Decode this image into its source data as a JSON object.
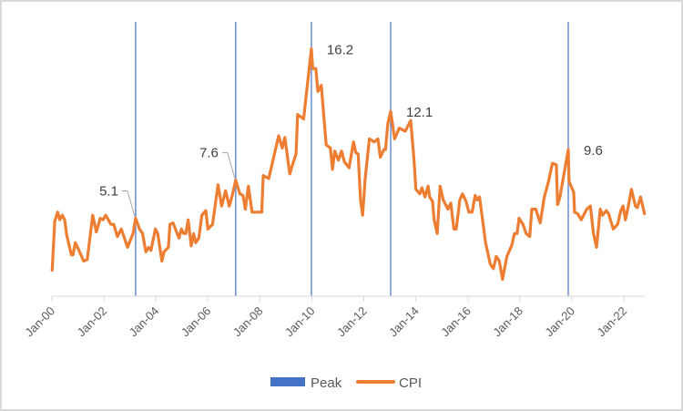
{
  "chart_data": {
    "type": "line",
    "title": "",
    "xlabel": "",
    "ylabel": "",
    "x_unit": "years since Jan-2000",
    "xlim": [
      0,
      22.8
    ],
    "ylim": [
      0,
      18
    ],
    "grid": false,
    "legend_position": "bottom",
    "x_tick_labels": [
      "Jan-00",
      "Jan-02",
      "Jan-04",
      "Jan-06",
      "Jan-08",
      "Jan-10",
      "Jan-12",
      "Jan-14",
      "Jan-16",
      "Jan-18",
      "Jan-20",
      "Jan-22"
    ],
    "x_tick_values": [
      0,
      2,
      4,
      6,
      8,
      10,
      12,
      14,
      16,
      18,
      20,
      22
    ],
    "colors": {
      "peak": "#4472c4",
      "cpi": "#ed7d31"
    },
    "legend": [
      {
        "name": "Peak",
        "marker": "rect"
      },
      {
        "name": "CPI",
        "marker": "line"
      }
    ],
    "series": [
      {
        "name": "CPI",
        "points": [
          [
            0.01,
            1.7
          ],
          [
            0.11,
            4.9
          ],
          [
            0.22,
            5.5
          ],
          [
            0.3,
            5.0
          ],
          [
            0.4,
            5.3
          ],
          [
            0.49,
            5.0
          ],
          [
            0.57,
            4.0
          ],
          [
            0.75,
            2.7
          ],
          [
            0.81,
            2.7
          ],
          [
            0.9,
            3.5
          ],
          [
            1.04,
            3.0
          ],
          [
            1.22,
            2.3
          ],
          [
            1.36,
            2.4
          ],
          [
            1.57,
            5.3
          ],
          [
            1.71,
            4.2
          ],
          [
            1.86,
            5.1
          ],
          [
            1.97,
            5.0
          ],
          [
            2.07,
            5.3
          ],
          [
            2.17,
            5.0
          ],
          [
            2.27,
            4.7
          ],
          [
            2.38,
            4.7
          ],
          [
            2.52,
            3.9
          ],
          [
            2.67,
            4.4
          ],
          [
            2.91,
            3.2
          ],
          [
            3.12,
            4.1
          ],
          [
            3.22,
            5.1
          ],
          [
            3.37,
            4.4
          ],
          [
            3.49,
            4.1
          ],
          [
            3.61,
            2.9
          ],
          [
            3.72,
            3.2
          ],
          [
            3.81,
            3.0
          ],
          [
            3.98,
            4.4
          ],
          [
            4.07,
            4.1
          ],
          [
            4.23,
            2.3
          ],
          [
            4.31,
            2.9
          ],
          [
            4.48,
            3.2
          ],
          [
            4.54,
            4.7
          ],
          [
            4.66,
            4.8
          ],
          [
            4.89,
            3.8
          ],
          [
            4.98,
            4.4
          ],
          [
            5.07,
            4.1
          ],
          [
            5.15,
            4.1
          ],
          [
            5.24,
            5.0
          ],
          [
            5.36,
            3.3
          ],
          [
            5.45,
            4.1
          ],
          [
            5.53,
            3.5
          ],
          [
            5.65,
            3.8
          ],
          [
            5.77,
            5.3
          ],
          [
            5.92,
            5.6
          ],
          [
            6.0,
            4.4
          ],
          [
            6.18,
            4.7
          ],
          [
            6.39,
            7.3
          ],
          [
            6.53,
            5.9
          ],
          [
            6.68,
            6.9
          ],
          [
            6.82,
            5.9
          ],
          [
            6.94,
            6.6
          ],
          [
            7.07,
            7.6
          ],
          [
            7.23,
            6.7
          ],
          [
            7.35,
            6.6
          ],
          [
            7.44,
            5.7
          ],
          [
            7.56,
            7.2
          ],
          [
            7.7,
            5.5
          ],
          [
            8.07,
            5.5
          ],
          [
            8.13,
            7.9
          ],
          [
            8.34,
            7.7
          ],
          [
            8.72,
            10.5
          ],
          [
            8.86,
            9.7
          ],
          [
            8.96,
            10.4
          ],
          [
            9.15,
            8.0
          ],
          [
            9.27,
            8.7
          ],
          [
            9.39,
            9.3
          ],
          [
            9.45,
            11.9
          ],
          [
            9.68,
            11.6
          ],
          [
            9.98,
            16.2
          ],
          [
            10.03,
            14.9
          ],
          [
            10.15,
            14.9
          ],
          [
            10.23,
            13.4
          ],
          [
            10.36,
            13.8
          ],
          [
            10.55,
            9.9
          ],
          [
            10.71,
            9.7
          ],
          [
            10.79,
            8.3
          ],
          [
            10.88,
            9.5
          ],
          [
            11.02,
            8.9
          ],
          [
            11.14,
            9.5
          ],
          [
            11.25,
            8.8
          ],
          [
            11.43,
            8.4
          ],
          [
            11.6,
            10.1
          ],
          [
            11.69,
            9.4
          ],
          [
            11.78,
            9.3
          ],
          [
            11.87,
            6.3
          ],
          [
            11.95,
            5.3
          ],
          [
            12.05,
            7.7
          ],
          [
            12.21,
            10.3
          ],
          [
            12.4,
            10.1
          ],
          [
            12.54,
            10.3
          ],
          [
            12.63,
            9.1
          ],
          [
            12.77,
            9.6
          ],
          [
            12.83,
            9.6
          ],
          [
            12.92,
            11.3
          ],
          [
            13.03,
            12.1
          ],
          [
            13.18,
            10.3
          ],
          [
            13.36,
            11.0
          ],
          [
            13.59,
            10.8
          ],
          [
            13.8,
            11.5
          ],
          [
            13.92,
            9.1
          ],
          [
            14.0,
            7.0
          ],
          [
            14.15,
            6.7
          ],
          [
            14.23,
            7.1
          ],
          [
            14.35,
            6.5
          ],
          [
            14.47,
            7.2
          ],
          [
            14.53,
            6.5
          ],
          [
            14.64,
            6.2
          ],
          [
            14.7,
            5.0
          ],
          [
            14.82,
            4.1
          ],
          [
            14.93,
            7.2
          ],
          [
            15.05,
            6.3
          ],
          [
            15.23,
            5.7
          ],
          [
            15.34,
            6.1
          ],
          [
            15.46,
            4.4
          ],
          [
            15.55,
            4.4
          ],
          [
            15.69,
            6.3
          ],
          [
            15.79,
            6.7
          ],
          [
            15.93,
            6.2
          ],
          [
            16.04,
            5.5
          ],
          [
            16.16,
            5.5
          ],
          [
            16.28,
            6.6
          ],
          [
            16.36,
            6.3
          ],
          [
            16.45,
            6.5
          ],
          [
            16.68,
            3.5
          ],
          [
            16.86,
            2.1
          ],
          [
            16.98,
            1.8
          ],
          [
            17.09,
            2.6
          ],
          [
            17.21,
            2.3
          ],
          [
            17.33,
            1.1
          ],
          [
            17.5,
            2.6
          ],
          [
            17.68,
            3.3
          ],
          [
            17.79,
            4.1
          ],
          [
            17.89,
            4.1
          ],
          [
            17.97,
            5.1
          ],
          [
            18.12,
            4.7
          ],
          [
            18.24,
            4.1
          ],
          [
            18.38,
            3.9
          ],
          [
            18.46,
            5.7
          ],
          [
            18.61,
            5.7
          ],
          [
            18.78,
            4.8
          ],
          [
            18.94,
            6.5
          ],
          [
            19.1,
            7.5
          ],
          [
            19.25,
            8.7
          ],
          [
            19.4,
            8.6
          ],
          [
            19.45,
            6.0
          ],
          [
            19.54,
            6.5
          ],
          [
            19.86,
            9.6
          ],
          [
            19.89,
            7.5
          ],
          [
            20.07,
            6.8
          ],
          [
            20.1,
            5.5
          ],
          [
            20.22,
            5.4
          ],
          [
            20.36,
            5.0
          ],
          [
            20.57,
            5.7
          ],
          [
            20.71,
            5.9
          ],
          [
            20.83,
            4.1
          ],
          [
            20.95,
            3.2
          ],
          [
            21.09,
            5.7
          ],
          [
            21.18,
            5.3
          ],
          [
            21.32,
            5.6
          ],
          [
            21.41,
            5.4
          ],
          [
            21.59,
            4.4
          ],
          [
            21.76,
            4.7
          ],
          [
            21.88,
            5.6
          ],
          [
            21.97,
            5.9
          ],
          [
            22.06,
            5.0
          ],
          [
            22.17,
            5.9
          ],
          [
            22.29,
            7.0
          ],
          [
            22.44,
            5.9
          ],
          [
            22.52,
            5.8
          ],
          [
            22.64,
            6.5
          ],
          [
            22.79,
            5.4
          ]
        ]
      },
      {
        "name": "Peak",
        "type": "vertical-lines",
        "points": [
          {
            "x": 3.22,
            "value": 5.1,
            "label": "5.1",
            "label_side": "left",
            "leader": true
          },
          {
            "x": 7.07,
            "value": 7.6,
            "label": "7.6",
            "label_side": "left",
            "leader": true
          },
          {
            "x": 9.98,
            "value": 16.2,
            "label": "16.2",
            "label_side": "right",
            "leader": false
          },
          {
            "x": 13.03,
            "value": 12.1,
            "label": "12.1",
            "label_side": "right",
            "leader": false
          },
          {
            "x": 19.86,
            "value": 9.6,
            "label": "9.6",
            "label_side": "right",
            "leader": false
          }
        ]
      }
    ]
  }
}
